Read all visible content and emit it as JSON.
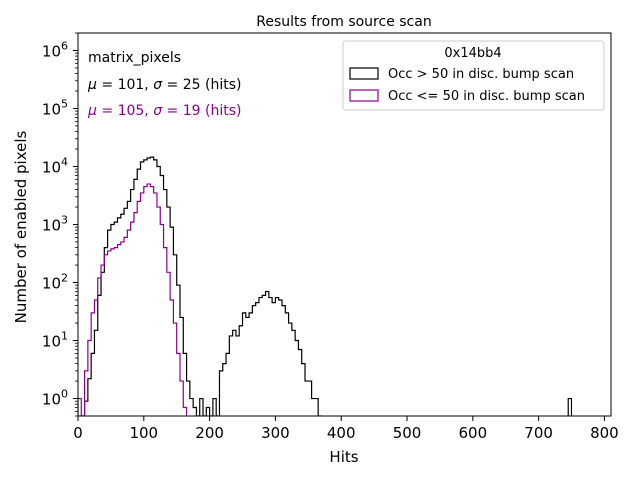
{
  "chart_data": {
    "type": "histogram-step",
    "title": "Results from source scan",
    "xlabel": "Hits",
    "ylabel": "Number of enabled pixels",
    "xlim": [
      0,
      810
    ],
    "ylim": [
      0.5,
      2000000
    ],
    "yscale": "log",
    "xticks": [
      0,
      100,
      200,
      300,
      400,
      500,
      600,
      700,
      800
    ],
    "xtick_labels": [
      "0",
      "100",
      "200",
      "300",
      "400",
      "500",
      "600",
      "700",
      "800"
    ],
    "yticks": [
      1,
      10,
      100,
      1000,
      10000,
      100000,
      1000000
    ],
    "ytick_base": "10",
    "ytick_exponents": [
      "0",
      "1",
      "2",
      "3",
      "4",
      "5",
      "6"
    ],
    "grid": false,
    "bin_width": 5,
    "annotations": {
      "label": "matrix_pixels",
      "stats": [
        {
          "mu": "101",
          "sigma": "25",
          "unit": "(hits)",
          "color": "#000000"
        },
        {
          "mu": "105",
          "sigma": "19",
          "unit": "(hits)",
          "color": "#8b008b"
        }
      ]
    },
    "legend": {
      "title": "0x14bb4",
      "placement": "top-right",
      "entries": [
        "Occ > 50 in disc. bump scan",
        "Occ <= 50 in disc. bump scan"
      ]
    },
    "series": [
      {
        "name": "Occ > 50 in disc. bump scan",
        "color": "#000000",
        "bins": [
          [
            5,
            0.5
          ],
          [
            10,
            0.9
          ],
          [
            15,
            2.2
          ],
          [
            20,
            6
          ],
          [
            25,
            15
          ],
          [
            30,
            60
          ],
          [
            35,
            150
          ],
          [
            40,
            400
          ],
          [
            45,
            800
          ],
          [
            50,
            1000
          ],
          [
            55,
            1100
          ],
          [
            60,
            1300
          ],
          [
            65,
            1500
          ],
          [
            70,
            1900
          ],
          [
            75,
            2500
          ],
          [
            80,
            4000
          ],
          [
            85,
            6000
          ],
          [
            90,
            9000
          ],
          [
            95,
            12000
          ],
          [
            100,
            13000
          ],
          [
            105,
            14000
          ],
          [
            110,
            14500
          ],
          [
            115,
            13000
          ],
          [
            120,
            10000
          ],
          [
            125,
            7000
          ],
          [
            130,
            4000
          ],
          [
            135,
            2000
          ],
          [
            140,
            900
          ],
          [
            145,
            300
          ],
          [
            150,
            90
          ],
          [
            155,
            25
          ],
          [
            160,
            6
          ],
          [
            165,
            2
          ],
          [
            170,
            1
          ],
          [
            175,
            0.7
          ],
          [
            180,
            0.5
          ],
          [
            185,
            1
          ],
          [
            190,
            0.5
          ],
          [
            195,
            0.7
          ],
          [
            200,
            0.5
          ],
          [
            205,
            1
          ],
          [
            210,
            0.5
          ],
          [
            215,
            3
          ],
          [
            220,
            4
          ],
          [
            225,
            6
          ],
          [
            230,
            12
          ],
          [
            235,
            15
          ],
          [
            240,
            12
          ],
          [
            245,
            18
          ],
          [
            250,
            30
          ],
          [
            255,
            25
          ],
          [
            260,
            30
          ],
          [
            265,
            40
          ],
          [
            270,
            45
          ],
          [
            275,
            55
          ],
          [
            280,
            60
          ],
          [
            285,
            70
          ],
          [
            290,
            55
          ],
          [
            295,
            45
          ],
          [
            300,
            55
          ],
          [
            305,
            50
          ],
          [
            310,
            40
          ],
          [
            315,
            30
          ],
          [
            320,
            20
          ],
          [
            325,
            15
          ],
          [
            330,
            10
          ],
          [
            335,
            7
          ],
          [
            340,
            4
          ],
          [
            345,
            2
          ],
          [
            350,
            2
          ],
          [
            355,
            1
          ],
          [
            360,
            1
          ],
          [
            365,
            0.5
          ],
          [
            745,
            1
          ]
        ]
      },
      {
        "name": "Occ <= 50 in disc. bump scan",
        "color": "#8b008b",
        "bins": [
          [
            0,
            1
          ],
          [
            5,
            0.5
          ],
          [
            10,
            3
          ],
          [
            15,
            10
          ],
          [
            20,
            30
          ],
          [
            25,
            50
          ],
          [
            30,
            120
          ],
          [
            35,
            200
          ],
          [
            40,
            300
          ],
          [
            45,
            350
          ],
          [
            50,
            380
          ],
          [
            55,
            400
          ],
          [
            60,
            450
          ],
          [
            65,
            500
          ],
          [
            70,
            600
          ],
          [
            75,
            800
          ],
          [
            80,
            1100
          ],
          [
            85,
            1600
          ],
          [
            90,
            2500
          ],
          [
            95,
            3500
          ],
          [
            100,
            4500
          ],
          [
            105,
            5000
          ],
          [
            110,
            4500
          ],
          [
            115,
            3500
          ],
          [
            120,
            2000
          ],
          [
            125,
            1000
          ],
          [
            130,
            400
          ],
          [
            135,
            150
          ],
          [
            140,
            50
          ],
          [
            145,
            20
          ],
          [
            150,
            6
          ],
          [
            155,
            2
          ],
          [
            160,
            0.7
          ]
        ]
      }
    ]
  }
}
